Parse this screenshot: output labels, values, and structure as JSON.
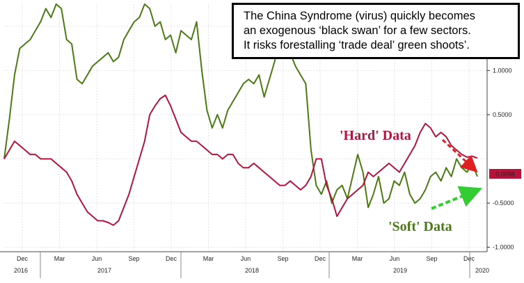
{
  "chart_data": {
    "type": "line",
    "ylim": [
      -1.05,
      1.75
    ],
    "y_ticks": [
      {
        "value": 1.0,
        "label": "1.0000"
      },
      {
        "value": 0.5,
        "label": "0.5000"
      },
      {
        "value": -0.5,
        "label": "-0.5000"
      },
      {
        "value": -1.0,
        "label": "-1.0000"
      }
    ],
    "x_ticks": [
      "Dec",
      "Mar",
      "Jun",
      "Sep",
      "Dec",
      "Mar",
      "Jun",
      "Sep",
      "Dec",
      "Mar",
      "Jun",
      "Sep",
      "Dec"
    ],
    "year_labels": [
      "2016",
      "2017",
      "2018",
      "2019",
      "2020"
    ],
    "grid": true,
    "series": [
      {
        "name": "'Soft' Data",
        "color": "#4a7a12",
        "values": [
          0.0,
          0.45,
          0.95,
          1.25,
          1.3,
          1.35,
          1.45,
          1.55,
          1.7,
          1.6,
          1.75,
          1.7,
          1.35,
          1.3,
          0.9,
          0.85,
          0.95,
          1.05,
          1.1,
          1.15,
          1.2,
          1.1,
          1.15,
          1.35,
          1.45,
          1.55,
          1.6,
          1.75,
          1.7,
          1.5,
          1.55,
          1.35,
          1.4,
          1.2,
          1.45,
          1.4,
          1.35,
          1.55,
          1.0,
          0.55,
          0.35,
          0.5,
          0.35,
          0.55,
          0.65,
          0.75,
          0.85,
          0.9,
          0.85,
          0.95,
          0.7,
          0.9,
          1.1,
          1.4,
          1.35,
          1.2,
          1.05,
          0.95,
          0.85,
          0.1,
          -0.3,
          -0.4,
          -0.25,
          -0.5,
          -0.35,
          -0.3,
          -0.45,
          -0.2,
          0.05,
          -0.15,
          -0.55,
          -0.4,
          -0.2,
          -0.5,
          -0.45,
          -0.25,
          -0.3,
          -0.15,
          -0.4,
          -0.5,
          -0.45,
          -0.35,
          -0.2,
          -0.15,
          -0.25,
          -0.1,
          -0.2,
          0.0,
          -0.1,
          -0.15,
          -0.05,
          -0.2
        ]
      },
      {
        "name": "'Hard' Data",
        "color": "#b5123c",
        "values": [
          0.0,
          0.1,
          0.2,
          0.15,
          0.1,
          0.05,
          0.05,
          0.0,
          0.0,
          0.0,
          -0.05,
          -0.1,
          -0.15,
          -0.25,
          -0.4,
          -0.5,
          -0.6,
          -0.65,
          -0.7,
          -0.7,
          -0.72,
          -0.75,
          -0.7,
          -0.55,
          -0.4,
          -0.2,
          0.0,
          0.2,
          0.5,
          0.6,
          0.68,
          0.72,
          0.6,
          0.45,
          0.3,
          0.25,
          0.2,
          0.2,
          0.15,
          0.1,
          0.05,
          0.05,
          0.0,
          0.05,
          0.05,
          -0.05,
          -0.1,
          -0.1,
          -0.05,
          -0.1,
          -0.15,
          -0.2,
          -0.25,
          -0.3,
          -0.3,
          -0.25,
          -0.3,
          -0.35,
          -0.3,
          -0.2,
          0.0,
          0.0,
          -0.3,
          -0.45,
          -0.65,
          -0.55,
          -0.45,
          -0.4,
          -0.35,
          -0.3,
          -0.15,
          -0.2,
          -0.15,
          -0.1,
          -0.05,
          -0.1,
          -0.15,
          -0.05,
          0.05,
          0.15,
          0.3,
          0.4,
          0.35,
          0.25,
          0.3,
          0.25,
          0.15,
          0.1,
          0.05,
          0.02,
          0.03,
          0.0098
        ]
      }
    ]
  },
  "annotation": {
    "lines": [
      "The China Syndrome (virus) quickly becomes",
      "an exogenous ‘black swan’ for a few sectors.",
      "It  risks forestalling ‘trade deal’ green shoots’."
    ]
  },
  "labels": {
    "hard": "'Hard' Data",
    "soft": "'Soft' Data",
    "last_value": "0.0098"
  },
  "colors": {
    "hard": "#b5123c",
    "soft": "#4a7a12",
    "hard_arrow": "#e02020",
    "soft_arrow": "#33cc33",
    "value_badge": "#b5123c"
  }
}
